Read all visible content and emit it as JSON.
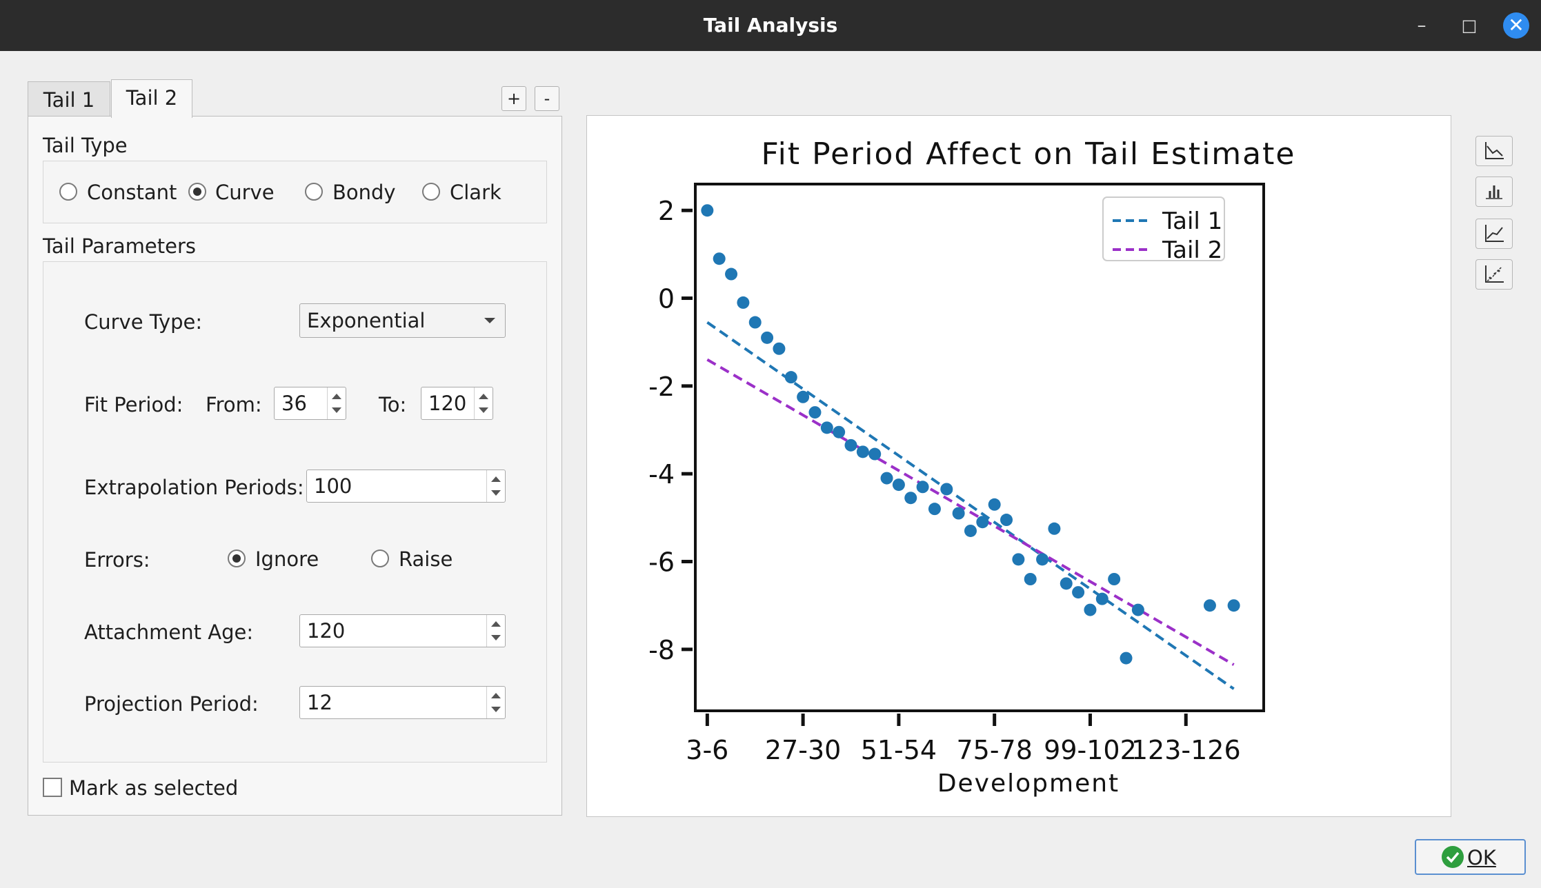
{
  "window": {
    "title": "Tail Analysis",
    "minimize": "–",
    "maximize": "□",
    "close": "✕"
  },
  "tabs": [
    {
      "label": "Tail 1",
      "active": false
    },
    {
      "label": "Tail 2",
      "active": true
    }
  ],
  "tab_buttons": {
    "add": "+",
    "remove": "-"
  },
  "tail_type": {
    "group_label": "Tail Type",
    "options": [
      "Constant",
      "Curve",
      "Bondy",
      "Clark"
    ],
    "selected": "Curve"
  },
  "tail_params": {
    "group_label": "Tail Parameters",
    "curve_type_label": "Curve Type:",
    "curve_type_value": "Exponential",
    "fit_period_label": "Fit Period:",
    "from_label": "From:",
    "from_value": "36",
    "to_label": "To:",
    "to_value": "120",
    "extrapolation_label": "Extrapolation Periods:",
    "extrapolation_value": "100",
    "errors_label": "Errors:",
    "errors_options": [
      "Ignore",
      "Raise"
    ],
    "errors_selected": "Ignore",
    "attachment_label": "Attachment Age:",
    "attachment_value": "120",
    "projection_label": "Projection Period:",
    "projection_value": "12"
  },
  "mark_selected": {
    "label": "Mark as selected",
    "checked": false
  },
  "ok_button": {
    "label": "OK"
  },
  "toolbar_icons": [
    "line-chart-icon",
    "bar-chart-icon",
    "trend-chart-icon",
    "scatter-fit-icon"
  ],
  "chart_data": {
    "type": "scatter",
    "title": "Fit Period Affect on Tail Estimate",
    "xlabel": "Development",
    "ylabel": "",
    "xticks": [
      "3-6",
      "27-30",
      "51-54",
      "75-78",
      "99-102",
      "123-126"
    ],
    "yticks": [
      2,
      0,
      -2,
      -4,
      -6,
      -8
    ],
    "xlim": [
      -1,
      46.5
    ],
    "ylim": [
      -9.4,
      2.6
    ],
    "points": {
      "x": [
        0,
        1,
        2,
        3,
        4,
        5,
        6,
        7,
        8,
        9,
        10,
        11,
        12,
        13,
        14,
        15,
        16,
        17,
        18,
        19,
        20,
        21,
        22,
        23,
        24,
        25,
        26,
        27,
        28,
        29,
        30,
        31,
        32,
        33,
        34,
        35,
        36,
        37,
        38,
        39,
        40,
        41,
        42,
        43,
        44
      ],
      "y": [
        2.0,
        0.9,
        0.55,
        -0.1,
        -0.55,
        -0.9,
        -1.15,
        -1.8,
        -2.25,
        -2.6,
        -2.95,
        -3.05,
        -3.35,
        -3.5,
        -3.55,
        -4.1,
        -4.25,
        -4.55,
        -4.3,
        -4.8,
        -4.35,
        -4.9,
        -5.3,
        -5.1,
        -4.7,
        -5.05,
        -5.95,
        -6.4,
        -5.95,
        -5.25,
        -6.5,
        -6.7,
        -7.1,
        -6.85,
        -6.4,
        -8.2,
        -7.1,
        null,
        null,
        null,
        null,
        null,
        -7.0,
        null,
        -7.0
      ],
      "color": "#1f77b4"
    },
    "series": [
      {
        "name": "Tail 1",
        "color": "#1f77b4",
        "x": [
          0,
          44
        ],
        "y": [
          -0.55,
          -8.9
        ]
      },
      {
        "name": "Tail 2",
        "color": "#9b30c8",
        "x": [
          0,
          44
        ],
        "y": [
          -1.4,
          -8.35
        ]
      }
    ],
    "legend_position": "top-right"
  }
}
